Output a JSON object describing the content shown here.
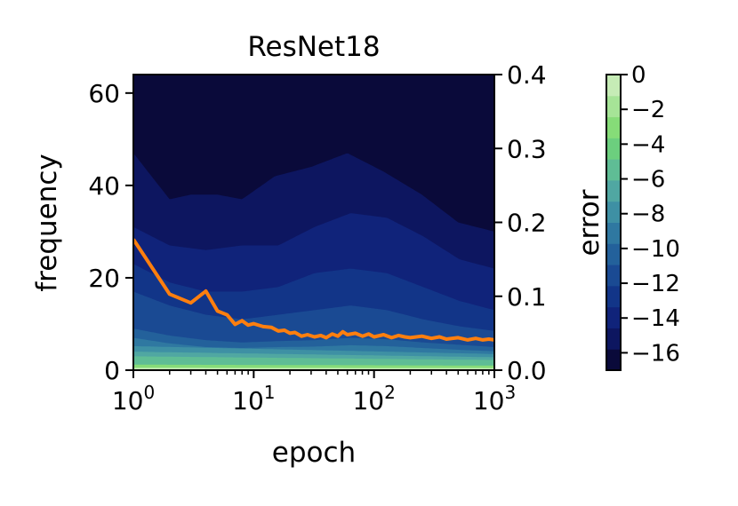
{
  "chart_data": {
    "type": "heatmap",
    "title": "ResNet18",
    "xlabel": "epoch",
    "ylabel": "frequency",
    "y2label": "",
    "colorbar_label": "error",
    "x_scale": "log",
    "xlim": [
      1,
      1000
    ],
    "ylim": [
      0,
      64
    ],
    "y2lim": [
      0,
      0.4
    ],
    "x_ticks": [
      {
        "value": 1,
        "base": "10",
        "exp": "0"
      },
      {
        "value": 10,
        "base": "10",
        "exp": "1"
      },
      {
        "value": 100,
        "base": "10",
        "exp": "2"
      },
      {
        "value": 1000,
        "base": "10",
        "exp": "3"
      }
    ],
    "y_ticks": [
      {
        "value": 0,
        "label": "0"
      },
      {
        "value": 20,
        "label": "20"
      },
      {
        "value": 40,
        "label": "40"
      },
      {
        "value": 60,
        "label": "60"
      }
    ],
    "y2_ticks": [
      {
        "value": 0.0,
        "label": "0.0"
      },
      {
        "value": 0.1,
        "label": "0.1"
      },
      {
        "value": 0.2,
        "label": "0.2"
      },
      {
        "value": 0.3,
        "label": "0.3"
      },
      {
        "value": 0.4,
        "label": "0.4"
      }
    ],
    "colorbar_range": [
      -17,
      0
    ],
    "colorbar_ticks": [
      {
        "value": 0,
        "label": "0"
      },
      {
        "value": -2,
        "label": "−2"
      },
      {
        "value": -4,
        "label": "−4"
      },
      {
        "value": -6,
        "label": "−6"
      },
      {
        "value": -8,
        "label": "−8"
      },
      {
        "value": -10,
        "label": "−10"
      },
      {
        "value": -12,
        "label": "−12"
      },
      {
        "value": -14,
        "label": "−14"
      },
      {
        "value": -16,
        "label": "−16"
      }
    ],
    "colormap": [
      "#0a0a3a",
      "#0d1660",
      "#10237a",
      "#123588",
      "#1a4a93",
      "#23619b",
      "#2f78a1",
      "#3e90a4",
      "#50a7a2",
      "#5fbd95",
      "#6ccf7e",
      "#86dc78",
      "#a6e497",
      "#c6ecb6"
    ],
    "contour_levels": [
      {
        "level": -16,
        "x": [
          1,
          2,
          4,
          8,
          16,
          32,
          64,
          128,
          256,
          512,
          1000
        ],
        "freq": [
          64,
          64,
          64,
          64,
          64,
          64,
          64,
          64,
          64,
          64,
          64
        ]
      },
      {
        "level": -15,
        "x": [
          1,
          2,
          3,
          5,
          8,
          15,
          30,
          60,
          120,
          250,
          500,
          1000
        ],
        "freq": [
          47,
          37,
          38,
          38,
          37,
          42,
          44,
          47,
          43,
          38,
          32,
          30
        ]
      },
      {
        "level": -14,
        "x": [
          1,
          2,
          4,
          8,
          16,
          32,
          64,
          128,
          256,
          512,
          1000
        ],
        "freq": [
          31,
          27,
          26,
          27,
          27,
          31,
          34,
          33,
          29,
          24,
          22
        ]
      },
      {
        "level": -13,
        "x": [
          1,
          2,
          4,
          8,
          16,
          32,
          64,
          128,
          256,
          512,
          1000
        ],
        "freq": [
          23,
          19,
          17,
          17,
          18,
          21,
          22,
          21,
          18,
          15,
          13
        ]
      },
      {
        "level": -12,
        "x": [
          1,
          2,
          4,
          8,
          16,
          32,
          64,
          128,
          256,
          512,
          1000
        ],
        "freq": [
          17,
          14,
          12,
          11,
          12,
          13,
          14,
          13,
          11,
          9.5,
          8.5
        ]
      },
      {
        "level": -11,
        "x": [
          1,
          2,
          4,
          8,
          16,
          32,
          64,
          128,
          256,
          512,
          1000
        ],
        "freq": [
          12,
          10,
          8.5,
          8,
          8.5,
          9,
          9.5,
          9,
          8,
          7,
          6.5
        ]
      },
      {
        "level": -10,
        "x": [
          1,
          2,
          4,
          8,
          16,
          32,
          64,
          128,
          256,
          512,
          1000
        ],
        "freq": [
          9,
          7.5,
          6.5,
          6,
          6.3,
          6.5,
          7,
          6.7,
          6,
          5.5,
          5
        ]
      },
      {
        "level": -9,
        "x": [
          1,
          2,
          4,
          8,
          16,
          32,
          64,
          128,
          256,
          512,
          1000
        ],
        "freq": [
          7,
          5.8,
          5,
          4.8,
          5,
          5.1,
          5.4,
          5.2,
          4.8,
          4.4,
          4.1
        ]
      },
      {
        "level": -8,
        "x": [
          1,
          1000
        ],
        "freq": [
          5.2,
          3.5
        ]
      },
      {
        "level": -7,
        "x": [
          1,
          1000
        ],
        "freq": [
          4,
          2.8
        ]
      },
      {
        "level": -6,
        "x": [
          1,
          1000
        ],
        "freq": [
          3,
          2.2
        ]
      },
      {
        "level": -5,
        "x": [
          1,
          1000
        ],
        "freq": [
          2,
          1.6
        ]
      },
      {
        "level": -3,
        "x": [
          1,
          1000
        ],
        "freq": [
          1.2,
          1.0
        ]
      },
      {
        "level": -1,
        "x": [
          1,
          1000
        ],
        "freq": [
          0.5,
          0.45
        ]
      }
    ],
    "series": [
      {
        "axis": "right",
        "color": "#ff7f0e",
        "x": [
          1,
          2,
          3,
          4,
          5,
          6,
          7,
          8,
          9,
          10,
          12,
          14,
          16,
          18,
          20,
          22,
          25,
          28,
          32,
          36,
          40,
          45,
          50,
          55,
          60,
          70,
          80,
          90,
          100,
          120,
          140,
          160,
          180,
          200,
          250,
          300,
          350,
          400,
          500,
          600,
          700,
          800,
          900,
          1000
        ],
        "y": [
          0.177,
          0.103,
          0.091,
          0.107,
          0.08,
          0.075,
          0.062,
          0.067,
          0.061,
          0.063,
          0.059,
          0.058,
          0.053,
          0.054,
          0.05,
          0.051,
          0.046,
          0.048,
          0.045,
          0.047,
          0.044,
          0.049,
          0.046,
          0.052,
          0.048,
          0.05,
          0.046,
          0.049,
          0.045,
          0.048,
          0.044,
          0.047,
          0.045,
          0.044,
          0.046,
          0.043,
          0.045,
          0.042,
          0.044,
          0.041,
          0.043,
          0.041,
          0.042,
          0.041
        ]
      }
    ]
  }
}
